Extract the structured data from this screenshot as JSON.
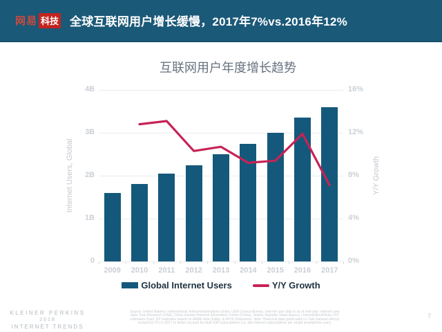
{
  "header": {
    "logo_brand": "网易",
    "logo_sub": "科技",
    "title": "全球互联网用户增长缓慢，2017年7%vs.2016年12%"
  },
  "colors": {
    "header_bg": "#1b5978",
    "logo_red": "#c32420",
    "bar": "#14597b",
    "line": "#c62356",
    "grid": "#e9ebee"
  },
  "chart_data": {
    "type": "bar",
    "title": "互联网用户年度增长趋势",
    "categories": [
      "2009",
      "2010",
      "2011",
      "2012",
      "2013",
      "2014",
      "2015",
      "2016",
      "2017"
    ],
    "series": [
      {
        "name": "Global Internet Users",
        "kind": "bar",
        "axis": "left",
        "unit": "billions",
        "color": "#14597b",
        "values": [
          1.6,
          1.8,
          2.05,
          2.25,
          2.5,
          2.75,
          3.0,
          3.35,
          3.6
        ]
      },
      {
        "name": "Y/Y Growth",
        "kind": "line",
        "axis": "right",
        "unit": "%",
        "color": "#c62356",
        "values": [
          null,
          12.8,
          13.1,
          10.3,
          10.7,
          9.2,
          9.4,
          11.9,
          7.1
        ]
      }
    ],
    "left_axis": {
      "label": "Internet Users, Global",
      "min": 0,
      "max": 4,
      "ticks": [
        "0",
        "1B",
        "2B",
        "3B",
        "4B"
      ]
    },
    "right_axis": {
      "label": "Y/Y Growth",
      "min": 0,
      "max": 16,
      "ticks": [
        "0%",
        "4%",
        "8%",
        "12%",
        "16%"
      ]
    },
    "grid": true,
    "legend_position": "bottom"
  },
  "footer": {
    "kp_line1": "KLEINER PERKINS",
    "kp_line2": "2018",
    "kp_line3": "INTERNET TRENDS",
    "source_lines": [
      "Source: United Nations / International Telecommunications Union, USA Census Bureau. Internet user data is as of mid-year. Internet user",
      "data: Pew Research (USA), China Internet Network Information Center (China), Islamic Republic News Agency / InternetWorldStats / KP",
      "estimates (Iran). KP estimates based on IAMAI data (India), & APJII (Indonesia). Note: Historical data (particularly in Sub-Saharan Africa)",
      "revised by ITU in 2017 to better account for dual-SIM subscriptions (i.e. two Internet subscriptions per single smartphone user)."
    ],
    "page_number": "7"
  }
}
